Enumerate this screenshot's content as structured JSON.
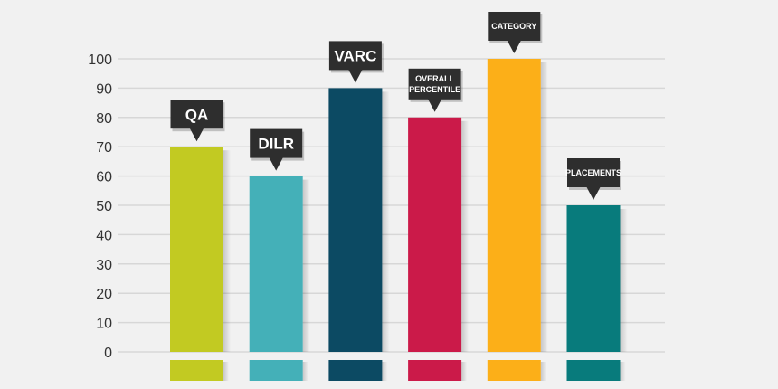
{
  "chart_data": {
    "type": "bar",
    "categories": [
      "QA",
      "DILR",
      "VARC",
      "OVERALL PERCENTILE",
      "CATEGORY",
      "PLACEMENTS"
    ],
    "category_lines": [
      [
        "QA"
      ],
      [
        "DILR"
      ],
      [
        "VARC"
      ],
      [
        "OVERALL",
        "PERCENTILE"
      ],
      [
        "CATEGORY"
      ],
      [
        "PLACEMENTS"
      ]
    ],
    "values": [
      70,
      60,
      90,
      80,
      100,
      50
    ],
    "colors": [
      "#c2ca22",
      "#44b0b8",
      "#0c4a63",
      "#cb1a49",
      "#fcaf18",
      "#087b7c"
    ],
    "ylim": [
      0,
      100
    ],
    "yticks": [
      0,
      10,
      20,
      30,
      40,
      50,
      60,
      70,
      80,
      90,
      100
    ],
    "ytick_labels": [
      "0",
      "10",
      "20",
      "30",
      "40",
      "50",
      "60",
      "70",
      "80",
      "90",
      "100"
    ],
    "grid": true,
    "label_style": "callout above bar",
    "title": "",
    "xlabel": "",
    "ylabel": ""
  }
}
